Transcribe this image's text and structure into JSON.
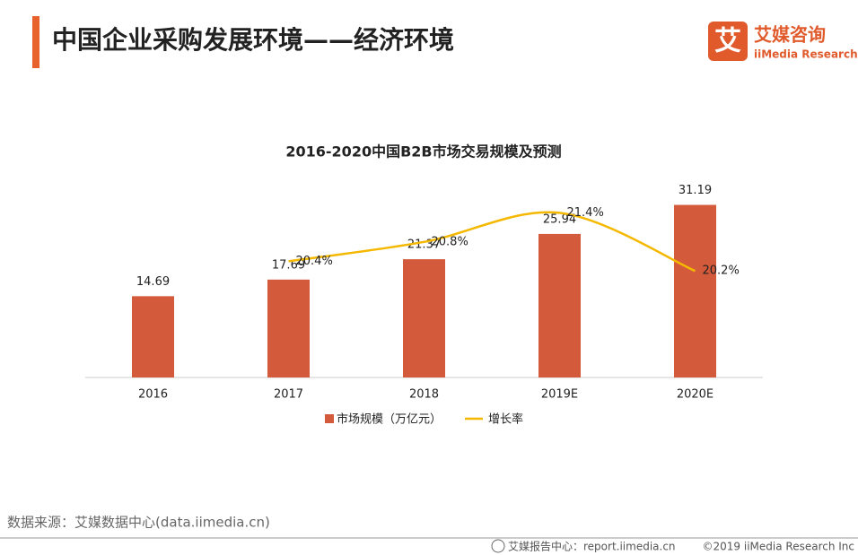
{
  "header": {
    "title": "中国企业采购发展环境——经济环境",
    "logo_icon": "艾",
    "logo_name": "艾媒咨询",
    "logo_sub": "iiMedia Research"
  },
  "chart_data": {
    "type": "bar",
    "title": "2016-2020中国B2B市场交易规模及预测",
    "categories": [
      "2016",
      "2017",
      "2018",
      "2019E",
      "2020E"
    ],
    "series": [
      {
        "name": "市场规模（万亿元）",
        "type": "bar",
        "color": "#d35a3b",
        "values": [
          14.69,
          17.69,
          21.37,
          25.94,
          31.19
        ]
      },
      {
        "name": "增长率",
        "type": "line",
        "axis": "y2",
        "color": "#f5b800",
        "values": [
          null,
          20.4,
          20.8,
          21.4,
          20.2
        ],
        "value_labels": [
          null,
          "20.4%",
          "20.8%",
          "21.4%",
          "20.2%"
        ]
      }
    ],
    "ylim": [
      0,
      35
    ],
    "y2lim": [
      18,
      22
    ],
    "legend": "bottom"
  },
  "footer": {
    "source": "数据来源：艾媒数据中心(data.iimedia.cn)",
    "report": "艾媒报告中心：report.iimedia.cn",
    "copyright": "©2019  iiMedia Research  Inc"
  }
}
